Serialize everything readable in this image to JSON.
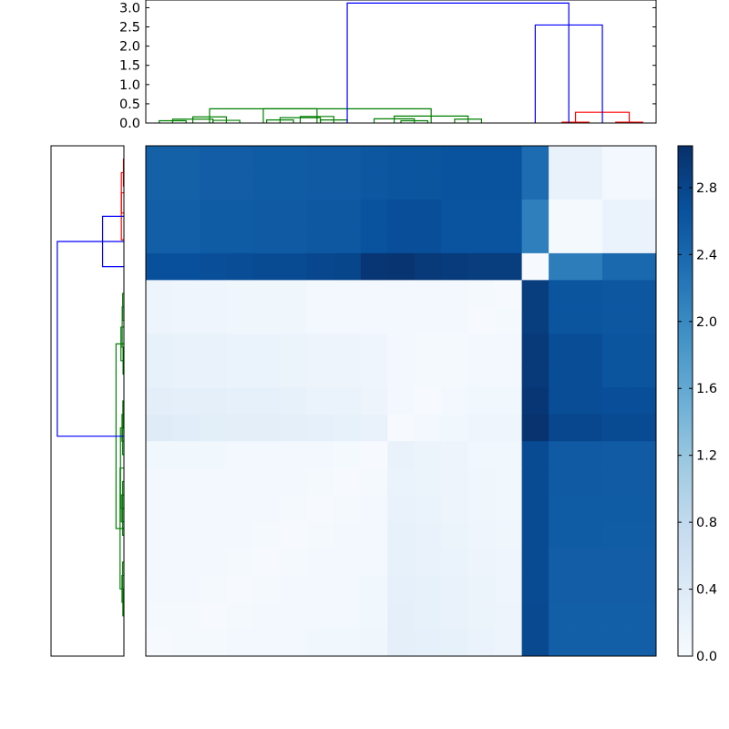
{
  "chart_data": {
    "type": "heatmap",
    "description": "Clustered distance heatmap with row and column dendrograms and a colorbar",
    "colormap": {
      "name": "Blues",
      "stops": [
        "#f7fbff",
        "#deebf7",
        "#c6dbef",
        "#9ecae1",
        "#6baed6",
        "#4292c6",
        "#2171b5",
        "#08519c",
        "#08306b"
      ],
      "vmin": 0.0,
      "vmax": 3.05
    },
    "colorbar": {
      "ticks": [
        0.0,
        0.4,
        0.8,
        1.2,
        1.6,
        2.0,
        2.4,
        2.8
      ],
      "tick_labels": [
        "0.0",
        "0.4",
        "0.8",
        "1.2",
        "1.6",
        "2.0",
        "2.4",
        "2.8"
      ]
    },
    "top_dendrogram": {
      "ylim": [
        0.0,
        3.2
      ],
      "ticks": [
        0.0,
        0.5,
        1.0,
        1.5,
        2.0,
        2.5,
        3.0
      ],
      "tick_labels": [
        "0.0",
        "0.5",
        "1.0",
        "1.5",
        "2.0",
        "2.5",
        "3.0"
      ],
      "n_leaves": 19,
      "colors": {
        "cluster_a": "#008000",
        "cluster_b": "#ff0000",
        "link": "#0000ff"
      },
      "links": [
        {
          "c": "cluster_a",
          "l": 0.5,
          "r": 1.5,
          "h": 0.06
        },
        {
          "c": "cluster_a",
          "l": 1.0,
          "r": 2.5,
          "h": 0.1
        },
        {
          "c": "cluster_a",
          "l": 2.5,
          "r": 3.5,
          "h": 0.07
        },
        {
          "c": "cluster_a",
          "l": 1.75,
          "r": 3.0,
          "h": 0.16
        },
        {
          "c": "cluster_a",
          "l": 4.5,
          "r": 5.5,
          "h": 0.08
        },
        {
          "c": "cluster_a",
          "l": 5.0,
          "r": 6.5,
          "h": 0.14
        },
        {
          "c": "cluster_a",
          "l": 6.5,
          "r": 7.5,
          "h": 0.08
        },
        {
          "c": "cluster_a",
          "l": 5.75,
          "r": 7.0,
          "h": 0.17
        },
        {
          "c": "cluster_a",
          "l": 2.375,
          "r": 6.375,
          "h": 0.37
        },
        {
          "c": "cluster_a",
          "l": 9.5,
          "r": 10.5,
          "h": 0.06
        },
        {
          "c": "cluster_a",
          "l": 8.5,
          "r": 10.0,
          "h": 0.11
        },
        {
          "c": "cluster_a",
          "l": 11.5,
          "r": 12.5,
          "h": 0.1
        },
        {
          "c": "cluster_a",
          "l": 9.25,
          "r": 12.0,
          "h": 0.18
        },
        {
          "c": "cluster_a",
          "l": 4.375,
          "r": 10.625,
          "h": 0.37
        },
        {
          "c": "cluster_b",
          "l": 15.5,
          "r": 16.5,
          "h": 0.02
        },
        {
          "c": "cluster_b",
          "l": 17.5,
          "r": 18.5,
          "h": 0.02
        },
        {
          "c": "cluster_b",
          "l": 16.0,
          "r": 18.0,
          "h": 0.28
        },
        {
          "c": "link",
          "l": 14.5,
          "r": 17.0,
          "h": 2.55
        },
        {
          "c": "link",
          "l": 7.5,
          "r": 15.75,
          "h": 3.12
        }
      ]
    },
    "left_dendrogram": {
      "n_leaves": 19,
      "colors": {
        "cluster_a": "#008000",
        "cluster_b": "#ff0000",
        "link": "#0000ff"
      },
      "links": [
        {
          "c": "cluster_b",
          "l": 0.5,
          "r": 1.5,
          "h": 0.02
        },
        {
          "c": "cluster_b",
          "l": 1.0,
          "r": 2.5,
          "h": 0.12
        },
        {
          "c": "cluster_b",
          "l": 1.75,
          "r": 3.5,
          "h": 0.12
        },
        {
          "c": "link",
          "l": 2.625,
          "r": 4.5,
          "h": 1.0
        },
        {
          "c": "cluster_a",
          "l": 5.5,
          "r": 6.5,
          "h": 0.06
        },
        {
          "c": "cluster_a",
          "l": 6.0,
          "r": 7.5,
          "h": 0.08
        },
        {
          "c": "cluster_a",
          "l": 7.5,
          "r": 8.5,
          "h": 0.04
        },
        {
          "c": "cluster_a",
          "l": 6.75,
          "r": 8.0,
          "h": 0.14
        },
        {
          "c": "cluster_a",
          "l": 9.5,
          "r": 10.5,
          "h": 0.05
        },
        {
          "c": "cluster_a",
          "l": 10.5,
          "r": 11.5,
          "h": 0.06
        },
        {
          "c": "cluster_a",
          "l": 10.0,
          "r": 11.0,
          "h": 0.09
        },
        {
          "c": "cluster_a",
          "l": 12.5,
          "r": 13.5,
          "h": 0.06
        },
        {
          "c": "cluster_a",
          "l": 13.5,
          "r": 14.5,
          "h": 0.06
        },
        {
          "c": "cluster_a",
          "l": 13.0,
          "r": 14.0,
          "h": 0.12
        },
        {
          "c": "cluster_a",
          "l": 15.5,
          "r": 16.5,
          "h": 0.06
        },
        {
          "c": "cluster_a",
          "l": 16.5,
          "r": 17.5,
          "h": 0.05
        },
        {
          "c": "cluster_a",
          "l": 16.0,
          "r": 17.0,
          "h": 0.09
        },
        {
          "c": "cluster_a",
          "l": 10.5,
          "r": 13.5,
          "h": 0.16
        },
        {
          "c": "cluster_a",
          "l": 12.0,
          "r": 16.5,
          "h": 0.18
        },
        {
          "c": "cluster_a",
          "l": 7.375,
          "r": 14.25,
          "h": 0.37
        },
        {
          "c": "link",
          "l": 3.5625,
          "r": 10.8125,
          "h": 3.12
        }
      ]
    },
    "matrix": [
      [
        2.48,
        2.48,
        2.52,
        2.52,
        2.54,
        2.54,
        2.56,
        2.56,
        2.6,
        2.62,
        2.62,
        2.66,
        2.66,
        2.66,
        2.35,
        0.22,
        0.22,
        0.08,
        0.08
      ],
      [
        2.48,
        2.48,
        2.52,
        2.52,
        2.54,
        2.54,
        2.56,
        2.56,
        2.6,
        2.62,
        2.62,
        2.66,
        2.66,
        2.66,
        2.35,
        0.22,
        0.22,
        0.08,
        0.08
      ],
      [
        2.5,
        2.5,
        2.54,
        2.54,
        2.56,
        2.56,
        2.58,
        2.58,
        2.66,
        2.7,
        2.7,
        2.64,
        2.64,
        2.64,
        2.12,
        0.05,
        0.05,
        0.2,
        0.2
      ],
      [
        2.5,
        2.5,
        2.54,
        2.54,
        2.56,
        2.56,
        2.58,
        2.58,
        2.66,
        2.7,
        2.7,
        2.64,
        2.64,
        2.64,
        2.12,
        0.05,
        0.05,
        0.2,
        0.2
      ],
      [
        2.68,
        2.68,
        2.7,
        2.72,
        2.74,
        2.74,
        2.78,
        2.8,
        2.98,
        3.0,
        2.95,
        2.92,
        2.9,
        2.9,
        0.02,
        2.15,
        2.15,
        2.4,
        2.4
      ],
      [
        0.16,
        0.14,
        0.14,
        0.12,
        0.12,
        0.12,
        0.08,
        0.08,
        0.08,
        0.06,
        0.06,
        0.06,
        0.04,
        0.02,
        2.9,
        2.62,
        2.62,
        2.6,
        2.6
      ],
      [
        0.16,
        0.14,
        0.14,
        0.12,
        0.12,
        0.12,
        0.08,
        0.08,
        0.08,
        0.06,
        0.06,
        0.06,
        0.02,
        0.04,
        2.9,
        2.62,
        2.62,
        2.6,
        2.6
      ],
      [
        0.24,
        0.22,
        0.22,
        0.2,
        0.2,
        0.18,
        0.16,
        0.16,
        0.14,
        0.06,
        0.04,
        0.04,
        0.08,
        0.08,
        2.95,
        2.72,
        2.72,
        2.62,
        2.62
      ],
      [
        0.24,
        0.22,
        0.22,
        0.2,
        0.2,
        0.18,
        0.16,
        0.16,
        0.14,
        0.06,
        0.04,
        0.04,
        0.08,
        0.08,
        2.95,
        2.72,
        2.72,
        2.62,
        2.62
      ],
      [
        0.3,
        0.28,
        0.28,
        0.26,
        0.26,
        0.24,
        0.2,
        0.2,
        0.16,
        0.08,
        0.02,
        0.06,
        0.1,
        0.1,
        2.98,
        2.72,
        2.72,
        2.7,
        2.7
      ],
      [
        0.36,
        0.34,
        0.32,
        0.3,
        0.3,
        0.28,
        0.26,
        0.24,
        0.22,
        0.02,
        0.08,
        0.1,
        0.14,
        0.14,
        3.02,
        2.78,
        2.78,
        2.74,
        2.74
      ],
      [
        0.1,
        0.1,
        0.1,
        0.08,
        0.08,
        0.06,
        0.06,
        0.04,
        0.02,
        0.22,
        0.18,
        0.16,
        0.1,
        0.1,
        2.74,
        2.56,
        2.56,
        2.55,
        2.55
      ],
      [
        0.08,
        0.08,
        0.08,
        0.06,
        0.06,
        0.06,
        0.04,
        0.02,
        0.04,
        0.2,
        0.18,
        0.16,
        0.12,
        0.1,
        2.74,
        2.56,
        2.56,
        2.55,
        2.55
      ],
      [
        0.08,
        0.08,
        0.08,
        0.06,
        0.06,
        0.04,
        0.02,
        0.04,
        0.06,
        0.22,
        0.2,
        0.16,
        0.12,
        0.1,
        2.74,
        2.54,
        2.54,
        2.54,
        2.54
      ],
      [
        0.08,
        0.08,
        0.06,
        0.06,
        0.04,
        0.02,
        0.04,
        0.06,
        0.06,
        0.24,
        0.22,
        0.18,
        0.14,
        0.12,
        2.74,
        2.54,
        2.54,
        2.53,
        2.53
      ],
      [
        0.08,
        0.06,
        0.06,
        0.04,
        0.02,
        0.04,
        0.06,
        0.06,
        0.08,
        0.24,
        0.22,
        0.2,
        0.16,
        0.14,
        2.74,
        2.52,
        2.52,
        2.52,
        2.52
      ],
      [
        0.06,
        0.06,
        0.04,
        0.02,
        0.04,
        0.06,
        0.06,
        0.08,
        0.1,
        0.26,
        0.24,
        0.22,
        0.18,
        0.14,
        2.74,
        2.52,
        2.52,
        2.52,
        2.52
      ],
      [
        0.04,
        0.04,
        0.02,
        0.04,
        0.06,
        0.06,
        0.08,
        0.08,
        0.1,
        0.28,
        0.24,
        0.22,
        0.18,
        0.16,
        2.76,
        2.5,
        2.5,
        2.5,
        2.5
      ],
      [
        0.02,
        0.04,
        0.04,
        0.06,
        0.08,
        0.08,
        0.1,
        0.1,
        0.12,
        0.28,
        0.26,
        0.24,
        0.2,
        0.16,
        2.76,
        2.5,
        2.5,
        2.5,
        2.5
      ]
    ]
  }
}
